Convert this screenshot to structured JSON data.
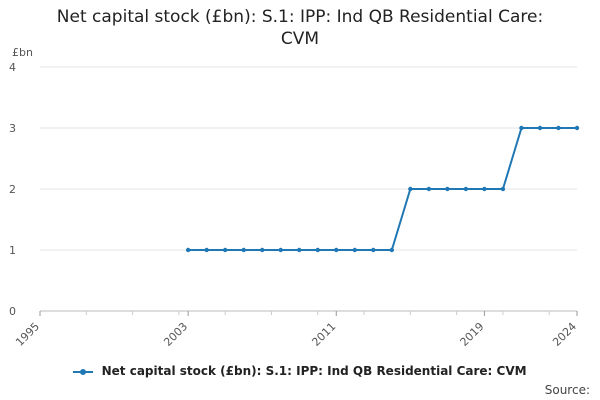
{
  "chart_data": {
    "type": "line",
    "title_line1": "Net capital stock (£bn): S.1: IPP: Ind QB Residential Care:",
    "title_line2": "CVM",
    "ylabel": "£bn",
    "xlabel": "",
    "x_ticks": [
      "1995",
      "2003",
      "2011",
      "2019",
      "2024"
    ],
    "y_ticks": [
      "0",
      "1",
      "2",
      "3",
      "4"
    ],
    "xlim": [
      1995,
      2024
    ],
    "ylim": [
      0,
      4
    ],
    "grid": true,
    "legend_position": "bottom",
    "series": [
      {
        "name": "Net capital stock (£bn): S.1: IPP: Ind QB Residential Care: CVM",
        "color": "#1f77b4",
        "x": [
          2003,
          2004,
          2005,
          2006,
          2007,
          2008,
          2009,
          2010,
          2011,
          2012,
          2013,
          2014,
          2015,
          2016,
          2017,
          2018,
          2019,
          2020,
          2021,
          2022,
          2023,
          2024
        ],
        "y": [
          1,
          1,
          1,
          1,
          1,
          1,
          1,
          1,
          1,
          1,
          1,
          1,
          2,
          2,
          2,
          2,
          2,
          2,
          3,
          3,
          3,
          3
        ]
      }
    ]
  },
  "footer": {
    "source_label": "Source:"
  }
}
